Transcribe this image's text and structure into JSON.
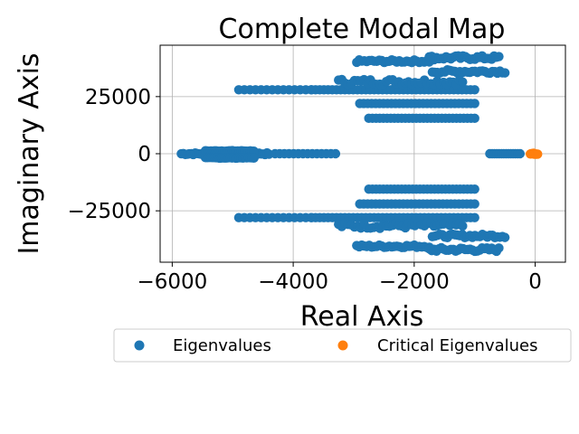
{
  "chart_data": {
    "type": "scatter",
    "title": "Complete Modal Map",
    "xlabel": "Real Axis",
    "ylabel": "Imaginary Axis",
    "xlim": [
      -6200,
      500
    ],
    "ylim": [
      -47500,
      47500
    ],
    "xticks": [
      -6000,
      -4000,
      -2000,
      0
    ],
    "xtick_labels": [
      "−6000",
      "−4000",
      "−2000",
      "0"
    ],
    "yticks": [
      -25000,
      0,
      25000
    ],
    "ytick_labels": [
      "−25000",
      "0",
      "25000"
    ],
    "grid": true,
    "legend_position": "below plot, two columns",
    "series": [
      {
        "name": "Eigenvalues",
        "color": "#1f77b4",
        "clusters": [
          {
            "x_from": -5850,
            "x_to": -4400,
            "y": 0,
            "count": 45,
            "spread": 900
          },
          {
            "x_from": -5450,
            "x_to": -4650,
            "y": 1200,
            "count": 28,
            "spread": 300
          },
          {
            "x_from": -5450,
            "x_to": -4650,
            "y": -1800,
            "count": 28,
            "spread": 300
          },
          {
            "x_from": -4300,
            "x_to": -3300,
            "y": 0,
            "count": 14,
            "spread": 0
          },
          {
            "x_from": -750,
            "x_to": -250,
            "y": 0,
            "count": 14,
            "spread": 0
          },
          {
            "x_from": -4900,
            "x_to": -3700,
            "y": 28000,
            "count": 14,
            "spread": 0
          },
          {
            "x_from": -3700,
            "x_to": -1000,
            "y": 28000,
            "count": 40,
            "spread": 0
          },
          {
            "x_from": -4900,
            "x_to": -3700,
            "y": -28000,
            "count": 14,
            "spread": 0
          },
          {
            "x_from": -3700,
            "x_to": -1000,
            "y": -28000,
            "count": 40,
            "spread": 0
          },
          {
            "x_from": -3250,
            "x_to": -1200,
            "y": 31500,
            "count": 40,
            "spread": 2500
          },
          {
            "x_from": -3250,
            "x_to": -1200,
            "y": -31500,
            "count": 40,
            "spread": 2500
          },
          {
            "x_from": -2900,
            "x_to": -1000,
            "y": 22000,
            "count": 30,
            "spread": 0
          },
          {
            "x_from": -2900,
            "x_to": -1000,
            "y": -22000,
            "count": 30,
            "spread": 0
          },
          {
            "x_from": -2750,
            "x_to": -1000,
            "y": 15500,
            "count": 30,
            "spread": 0
          },
          {
            "x_from": -2750,
            "x_to": -1000,
            "y": -15500,
            "count": 30,
            "spread": 0
          },
          {
            "x_from": -2950,
            "x_to": -1750,
            "y": 40500,
            "count": 30,
            "spread": 1200
          },
          {
            "x_from": -2950,
            "x_to": -1750,
            "y": -40500,
            "count": 30,
            "spread": 1200
          },
          {
            "x_from": -1750,
            "x_to": -600,
            "y": 42000,
            "count": 30,
            "spread": 1800
          },
          {
            "x_from": -1750,
            "x_to": -600,
            "y": -42000,
            "count": 30,
            "spread": 1800
          },
          {
            "x_from": -1700,
            "x_to": -500,
            "y": 36000,
            "count": 30,
            "spread": 1500
          },
          {
            "x_from": -1700,
            "x_to": -500,
            "y": -36000,
            "count": 30,
            "spread": 1500
          }
        ]
      },
      {
        "name": "Critical Eigenvalues",
        "color": "#ff7f0e",
        "clusters": [
          {
            "x_from": -80,
            "x_to": 40,
            "y": 0,
            "count": 10,
            "spread": 500
          }
        ]
      }
    ]
  },
  "legend": {
    "items": [
      {
        "label": "Eigenvalues",
        "color": "#1f77b4"
      },
      {
        "label": "Critical Eigenvalues",
        "color": "#ff7f0e"
      }
    ]
  }
}
